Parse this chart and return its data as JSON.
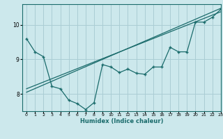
{
  "xlabel": "Humidex (Indice chaleur)",
  "bg_color": "#cce8ec",
  "grid_color": "#aacdd4",
  "line_color": "#1a6b6b",
  "xlim": [
    -0.5,
    23
  ],
  "ylim": [
    7.5,
    10.6
  ],
  "xticks": [
    0,
    1,
    2,
    3,
    4,
    5,
    6,
    7,
    8,
    9,
    10,
    11,
    12,
    13,
    14,
    15,
    16,
    17,
    18,
    19,
    20,
    21,
    22,
    23
  ],
  "yticks": [
    8,
    9,
    10
  ],
  "line1_x": [
    0,
    23
  ],
  "line1_y": [
    8.05,
    10.48
  ],
  "line2_x": [
    0,
    23
  ],
  "line2_y": [
    8.15,
    10.38
  ],
  "data_x": [
    0,
    1,
    2,
    3,
    4,
    5,
    6,
    7,
    8,
    9,
    10,
    11,
    12,
    13,
    14,
    15,
    16,
    17,
    18,
    19,
    20,
    21,
    22,
    23
  ],
  "data_y": [
    9.6,
    9.22,
    9.08,
    8.22,
    8.15,
    7.82,
    7.72,
    7.55,
    7.75,
    8.85,
    8.78,
    8.62,
    8.72,
    8.6,
    8.57,
    8.78,
    8.78,
    9.35,
    9.22,
    9.22,
    10.08,
    10.08,
    10.22,
    10.45
  ]
}
